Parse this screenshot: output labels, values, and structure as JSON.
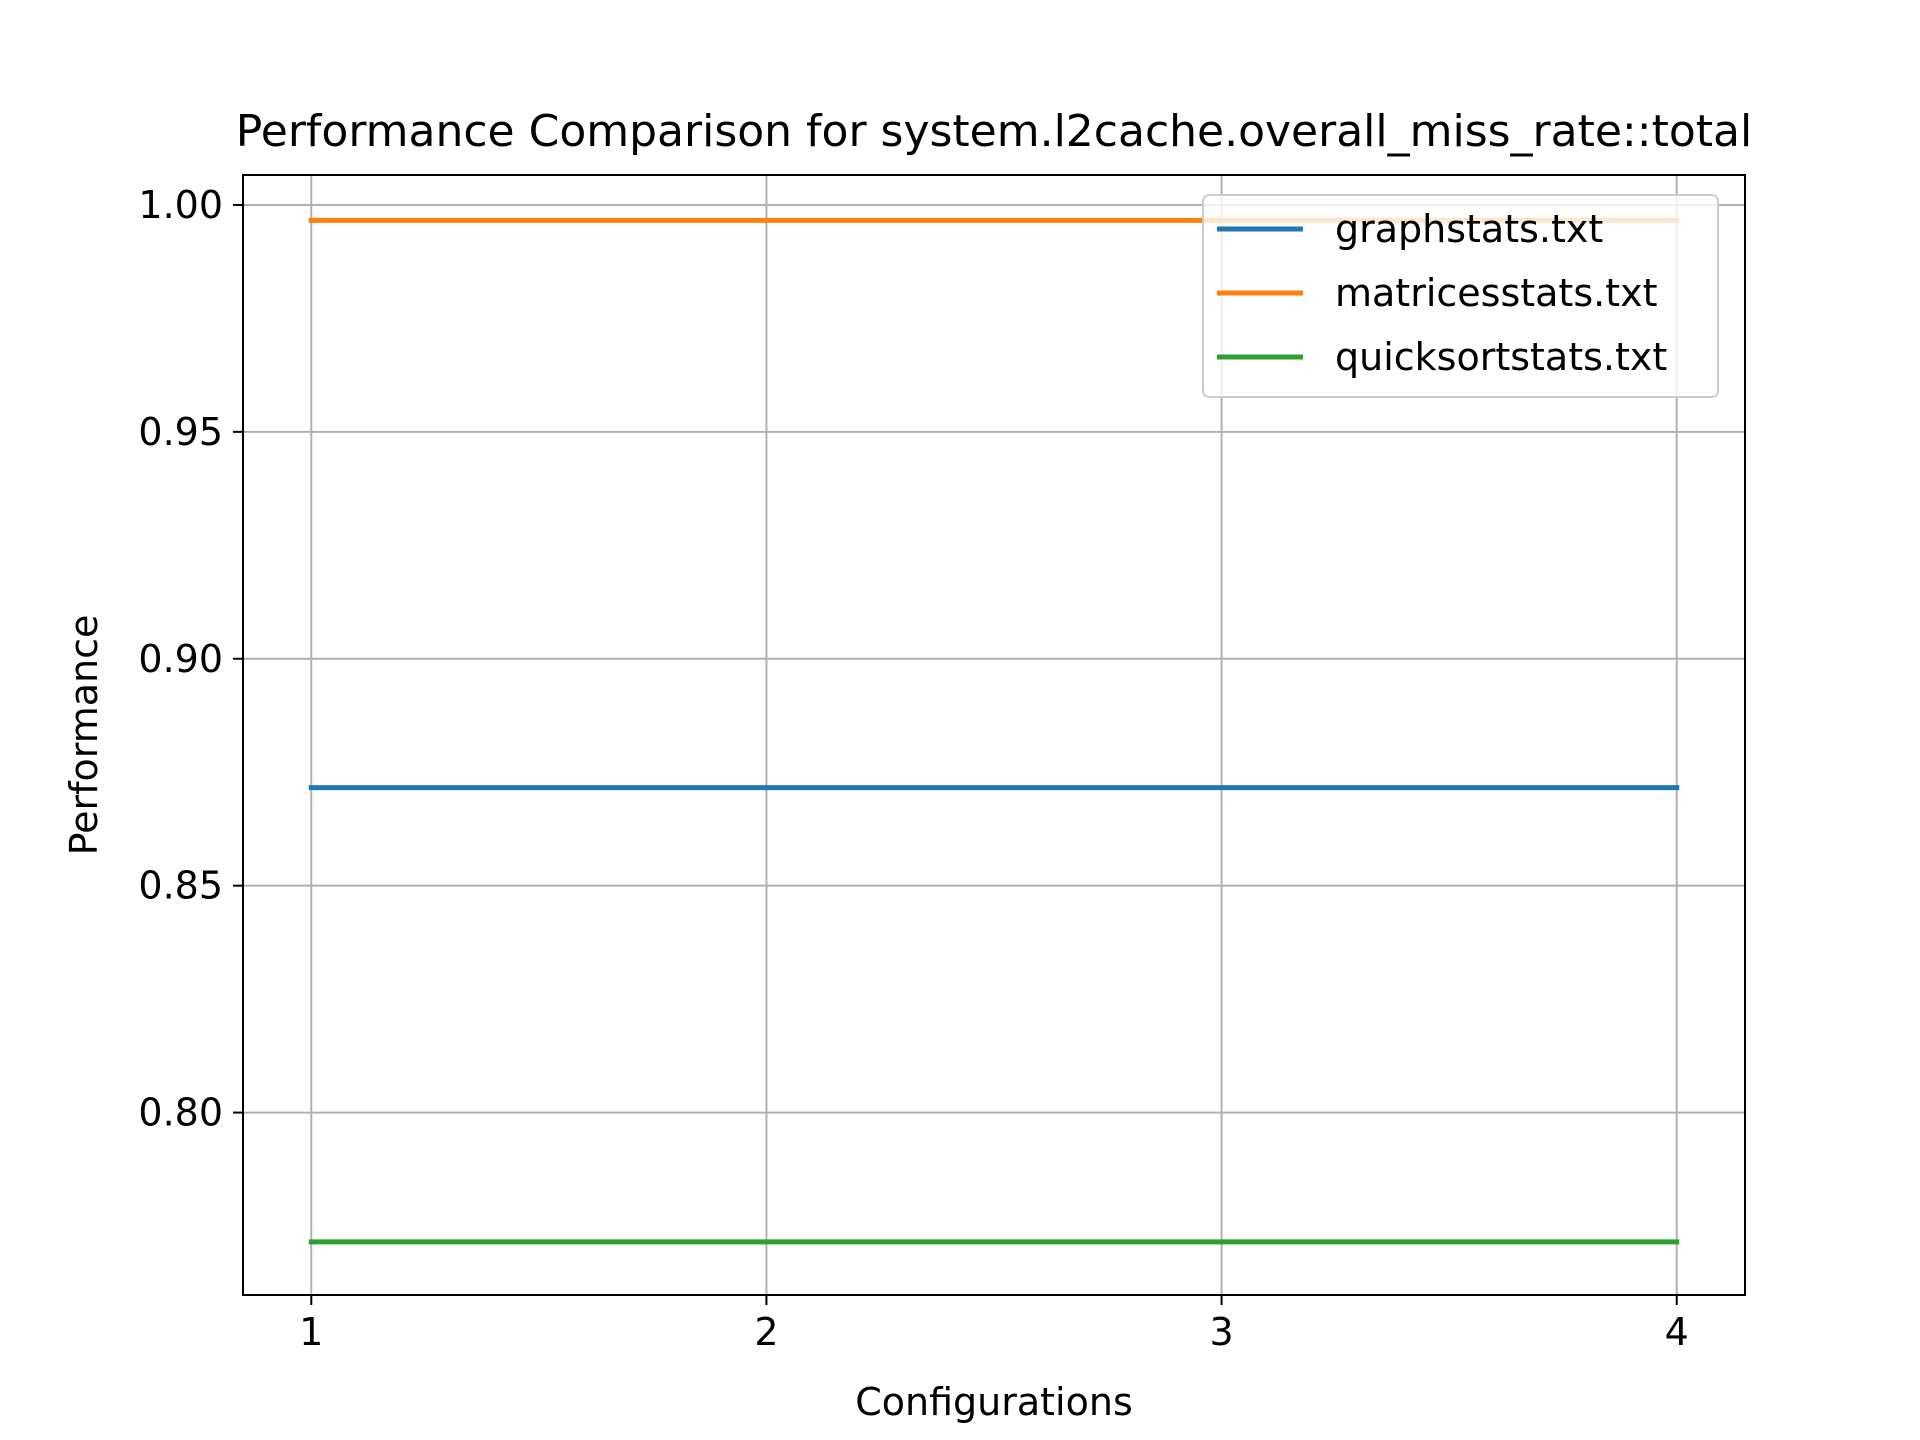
{
  "chart_data": {
    "type": "line",
    "title": "Performance Comparison for system.l2cache.overall_miss_rate::total",
    "xlabel": "Configurations",
    "ylabel": "Performance",
    "x": [
      1,
      2,
      3,
      4
    ],
    "x_ticks": [
      "1",
      "2",
      "3",
      "4"
    ],
    "xlim": [
      0.85,
      4.15
    ],
    "ylim": [
      0.7598,
      1.0066
    ],
    "y_ticks": [
      0.8,
      0.85,
      0.9,
      0.95,
      1.0
    ],
    "y_tick_labels": [
      "0.80",
      "0.85",
      "0.90",
      "0.95",
      "1.00"
    ],
    "grid": true,
    "legend_position": "upper right",
    "series": [
      {
        "name": "graphstats.txt",
        "values": [
          0.8716,
          0.8716,
          0.8716,
          0.8716
        ],
        "color": "#1f77b4"
      },
      {
        "name": "matricesstats.txt",
        "values": [
          0.9966,
          0.9966,
          0.9966,
          0.9966
        ],
        "color": "#ff7f0e"
      },
      {
        "name": "quicksortstats.txt",
        "values": [
          0.7715,
          0.7715,
          0.7715,
          0.7715
        ],
        "color": "#2ca02c"
      }
    ]
  }
}
